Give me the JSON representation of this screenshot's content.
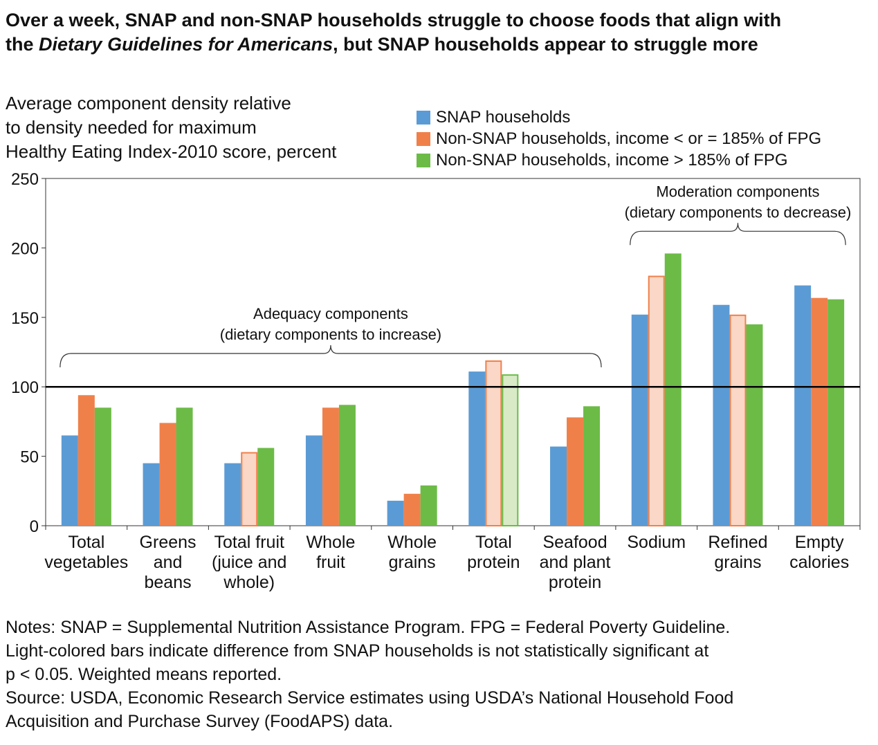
{
  "title": {
    "line1": "Over a week, SNAP and non-SNAP households struggle to choose foods that align with",
    "line2_pre": "the ",
    "line2_em": "Dietary Guidelines for Americans",
    "line2_post": ", but SNAP households appear to struggle more"
  },
  "notes": {
    "line1": "Notes: SNAP = Supplemental Nutrition Assistance Program. FPG = Federal Poverty Guideline.",
    "line2": "Light-colored bars indicate difference from SNAP households is not statistically significant at",
    "line3": "p < 0.05. Weighted means reported.",
    "line4": "Source: USDA, Economic Research Service estimates using USDA’s National Household Food",
    "line5": "Acquisition and Purchase Survey (FoodAPS) data."
  },
  "colors": {
    "snap": "#5b9bd5",
    "non_snap_low": "#f0804a",
    "non_snap_low_light": "#fad7c6",
    "non_snap_high": "#6cbb47",
    "non_snap_high_light": "#d8eac6",
    "reference_line": "#000000"
  },
  "chart_data": {
    "type": "bar",
    "ylabel_lines": [
      "Average component density relative",
      "to density needed for maximum",
      "Healthy Eating Index-2010 score, percent"
    ],
    "ylim": [
      0,
      250
    ],
    "yticks": [
      0,
      50,
      100,
      150,
      200,
      250
    ],
    "grid": false,
    "legend_position": "top-right",
    "reference_line": 100,
    "categories": [
      [
        "Total",
        "vegetables"
      ],
      [
        "Greens",
        "and",
        "beans"
      ],
      [
        "Total fruit",
        "(juice and",
        "whole)"
      ],
      [
        "Whole",
        "fruit"
      ],
      [
        "Whole",
        "grains"
      ],
      [
        "Total",
        "protein"
      ],
      [
        "Seafood",
        "and plant",
        "protein"
      ],
      [
        "Sodium"
      ],
      [
        "Refined",
        "grains"
      ],
      [
        "Empty",
        "calories"
      ]
    ],
    "series": [
      {
        "name": "SNAP households",
        "color_key": "snap",
        "values": [
          65,
          45,
          45,
          65,
          18,
          111,
          57,
          152,
          159,
          173
        ],
        "not_significant": [
          false,
          false,
          false,
          false,
          false,
          false,
          false,
          false,
          false,
          false
        ]
      },
      {
        "name": "Non-SNAP households, income < or = 185% of FPG",
        "color_key": "non_snap_low",
        "values": [
          94,
          74,
          53,
          85,
          23,
          119,
          78,
          180,
          152,
          164
        ],
        "not_significant": [
          false,
          false,
          true,
          false,
          false,
          true,
          false,
          true,
          true,
          false
        ]
      },
      {
        "name": "Non-SNAP households, income > 185% of FPG",
        "color_key": "non_snap_high",
        "values": [
          85,
          85,
          56,
          87,
          29,
          109,
          86,
          196,
          145,
          163
        ],
        "not_significant": [
          false,
          false,
          false,
          false,
          false,
          true,
          false,
          false,
          false,
          false
        ]
      }
    ],
    "annotations": [
      {
        "lines": [
          "Adequacy components",
          "(dietary components to increase)"
        ],
        "from_category": 0,
        "to_category": 6,
        "bracket_value": 124
      },
      {
        "lines": [
          "Moderation components",
          "(dietary components to decrease)"
        ],
        "from_category": 7,
        "to_category": 9,
        "bracket_value": 212
      }
    ]
  }
}
